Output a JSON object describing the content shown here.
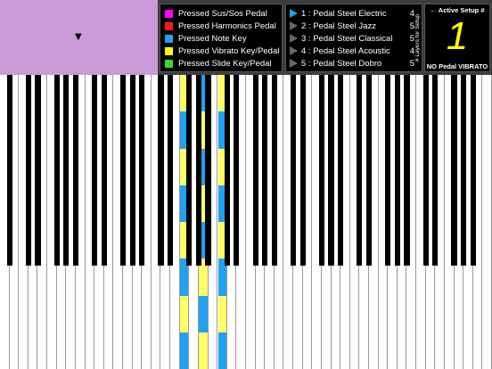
{
  "header": {
    "selector": {
      "arrow_icon": "triangle-down"
    },
    "legend": [
      {
        "label": "Pressed Sus/Sos Pedal",
        "color": "#ff00ff"
      },
      {
        "label": "Pressed Harmonics Pedal",
        "color": "#ff1a1a"
      },
      {
        "label": "Pressed Note Key",
        "color": "#21a2f0"
      },
      {
        "label": "Pressed Vibrato Key/Pedal",
        "color": "#ffff00"
      },
      {
        "label": "Pressed Slide Key/Pedal",
        "color": "#2ddc2d"
      }
    ],
    "setups": [
      {
        "label": "1 : Pedal Steel Electric",
        "layers": "4",
        "active": true
      },
      {
        "label": "2 : Pedal Steel Jazz",
        "layers": "5",
        "active": false
      },
      {
        "label": "3 : Pedal Steel Classical",
        "layers": "5",
        "active": false
      },
      {
        "label": "4 : Pedal Steel Acoustic",
        "layers": "4",
        "active": false
      },
      {
        "label": "5 : Pedal Steel Dobro",
        "layers": "5",
        "active": false
      }
    ],
    "layers_label": "# Layers for Setup",
    "active_setup": {
      "title": "← Active Setup #",
      "number": "1",
      "digit_color": "#ffff00",
      "vibrato_status": "NO Pedal VIBRATO"
    }
  },
  "keyboard": {
    "white_key_count": 52,
    "note_color": "#21a2f0",
    "vibrato_color": "#ffff66",
    "highlighted_white_keys": [
      19,
      21,
      23
    ]
  }
}
